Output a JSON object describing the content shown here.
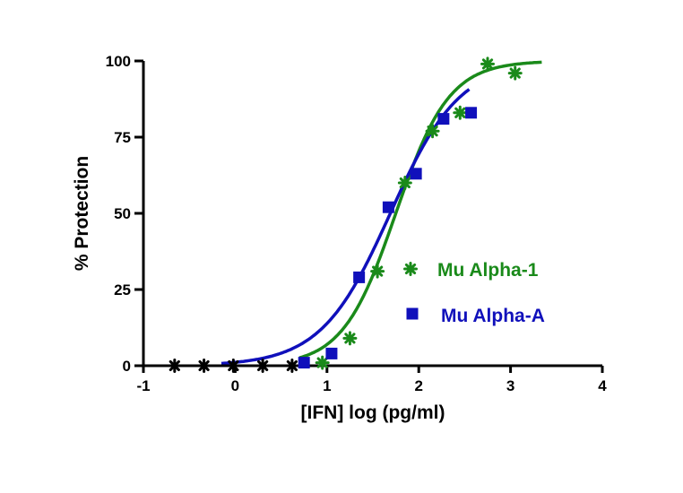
{
  "chart_data": {
    "type": "scatter",
    "title": "",
    "xlabel": "[IFN] log (pg/ml)",
    "ylabel": "% Protection",
    "xlim": [
      -1,
      4
    ],
    "ylim": [
      0,
      100
    ],
    "x_ticks": [
      "-1",
      "0",
      "1",
      "2",
      "3",
      "4"
    ],
    "y_ticks": [
      "0",
      "25",
      "50",
      "75",
      "100"
    ],
    "grid": false,
    "legend_position": "right",
    "series": [
      {
        "name": "Mu Alpha-1",
        "color": "#1a8a1a",
        "marker": "asterisk",
        "points": [
          {
            "x": -0.66,
            "y": 0
          },
          {
            "x": -0.34,
            "y": 0
          },
          {
            "x": -0.02,
            "y": 0
          },
          {
            "x": 0.3,
            "y": 0
          },
          {
            "x": 0.62,
            "y": 0
          },
          {
            "x": 0.95,
            "y": 1
          },
          {
            "x": 1.25,
            "y": 9
          },
          {
            "x": 1.55,
            "y": 31
          },
          {
            "x": 1.85,
            "y": 60
          },
          {
            "x": 2.15,
            "y": 77
          },
          {
            "x": 2.45,
            "y": 83
          },
          {
            "x": 2.75,
            "y": 99
          },
          {
            "x": 3.05,
            "y": 96
          }
        ],
        "fit": {
          "bottom": 0,
          "top": 100,
          "logEC50": 1.75,
          "hill": 1.5,
          "x_range": [
            0.7,
            3.35
          ]
        }
      },
      {
        "name": "Mu Alpha-A",
        "color": "#1010bb",
        "marker": "square",
        "points": [
          {
            "x": 0.75,
            "y": 1
          },
          {
            "x": 1.05,
            "y": 4
          },
          {
            "x": 1.35,
            "y": 29
          },
          {
            "x": 1.67,
            "y": 52
          },
          {
            "x": 1.97,
            "y": 63
          },
          {
            "x": 2.27,
            "y": 81
          },
          {
            "x": 2.57,
            "y": 83
          }
        ],
        "fit": {
          "bottom": 0,
          "top": 100,
          "logEC50": 1.69,
          "hill": 1.15,
          "x_range": [
            -0.15,
            2.55
          ]
        }
      }
    ]
  }
}
